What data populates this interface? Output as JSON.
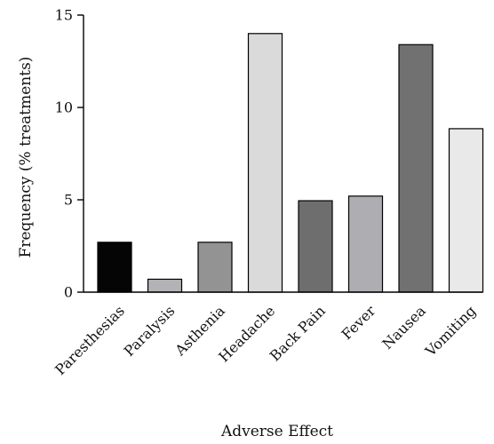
{
  "chart_data": {
    "type": "bar",
    "xlabel": "Adverse Effect",
    "ylabel": "Frequency (% treatments)",
    "ylim": [
      0,
      15
    ],
    "yticks": [
      0,
      5,
      10,
      15
    ],
    "grid": false,
    "categories": [
      "Paresthesias",
      "Paralysis",
      "Asthenia",
      "Headache",
      "Back Pain",
      "Fever",
      "Nausea",
      "Vomiting"
    ],
    "values": [
      2.7,
      0.7,
      2.7,
      14.0,
      4.95,
      5.2,
      13.4,
      8.85
    ],
    "bar_colors": [
      "#050505",
      "#b3b3b7",
      "#939393",
      "#dadada",
      "#6e6e6e",
      "#aeaeb2",
      "#717171",
      "#e9e9e9"
    ]
  }
}
